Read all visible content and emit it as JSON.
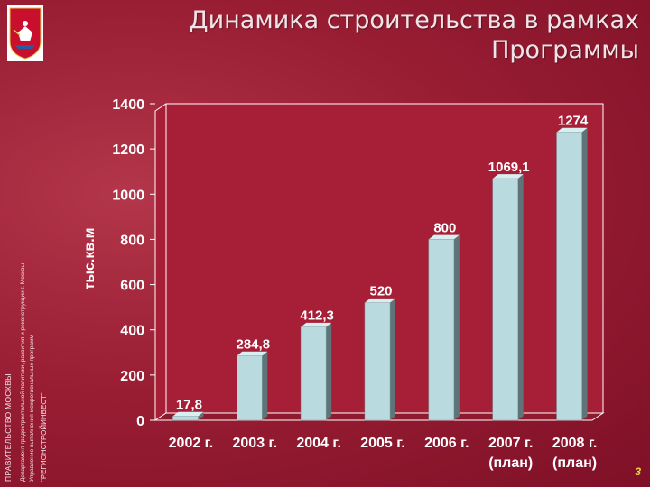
{
  "title_lines": [
    "Динамика строительства в рамках",
    "Программы"
  ],
  "side_texts": [
    "ПРАВИТЕЛЬСТВО МОСКВЫ",
    "Департамент градостроительной политики, развития и реконструкции г. Москвы",
    "Управление выполнения межрегиональных программ",
    "\"РЕГИОНСТРОЙИНВЕСТ\""
  ],
  "page_number": "3",
  "colors": {
    "bar_front": "#b9dbe0",
    "bar_side": "#5e7478",
    "bar_top": "#d9eef1",
    "plot_area": "#a61f37",
    "text": "#ffffff"
  },
  "chart_data": {
    "type": "bar",
    "categories": [
      [
        "2002 г.",
        ""
      ],
      [
        "2003 г.",
        ""
      ],
      [
        "2004 г.",
        ""
      ],
      [
        "2005 г.",
        ""
      ],
      [
        "2006 г.",
        ""
      ],
      [
        "2007 г.",
        "(план)"
      ],
      [
        "2008 г.",
        "(план)"
      ]
    ],
    "values": [
      17.8,
      284.8,
      412.3,
      520,
      800,
      1069.1,
      1274
    ],
    "labels": [
      "17,8",
      "284,8",
      "412,3",
      "520",
      "800",
      "1069,1",
      "1274"
    ],
    "ylabel": "тыс.кв.м",
    "ylim": [
      0,
      1400
    ],
    "yticks": [
      0,
      200,
      400,
      600,
      800,
      1000,
      1200,
      1400
    ],
    "grid": false
  }
}
